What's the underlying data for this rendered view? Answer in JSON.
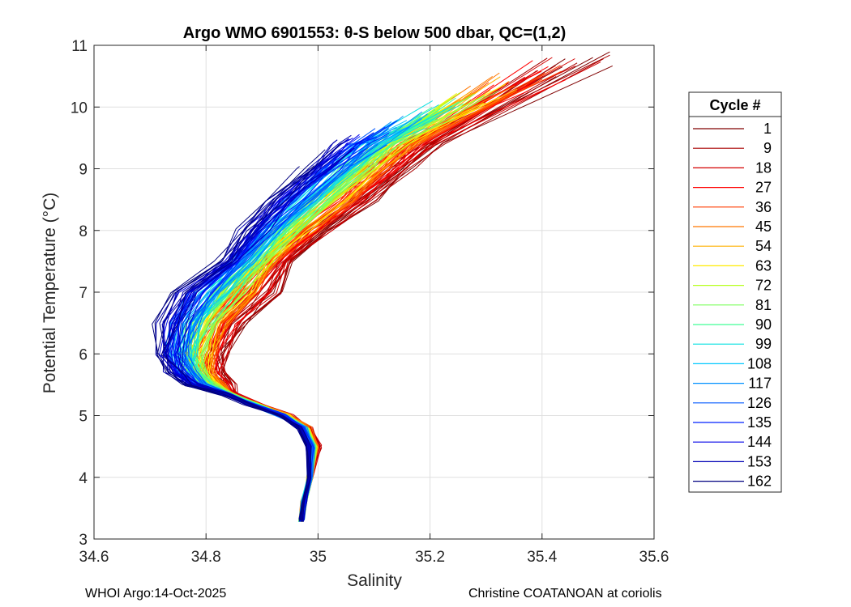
{
  "chart_data": {
    "type": "line",
    "title": "Argo WMO 6901553: θ-S below 500 dbar,  QC=(1,2)",
    "xlabel": "Salinity",
    "ylabel": "Potential Temperature (°C)",
    "xlim": [
      34.6,
      35.6
    ],
    "ylim": [
      3,
      11
    ],
    "xticks": [
      34.6,
      34.8,
      35,
      35.2,
      35.4,
      35.6
    ],
    "xtick_labels": [
      "34.6",
      "34.8",
      "35",
      "35.2",
      "35.4",
      "35.6"
    ],
    "yticks": [
      3,
      4,
      5,
      6,
      7,
      8,
      9,
      10,
      11
    ],
    "ytick_labels": [
      "3",
      "4",
      "5",
      "6",
      "7",
      "8",
      "9",
      "10",
      "11"
    ],
    "grid": true,
    "legend": {
      "title": "Cycle #",
      "placement": "outside-right",
      "entries": [
        {
          "label": "1",
          "color": "#800000"
        },
        {
          "label": "9",
          "color": "#a80000"
        },
        {
          "label": "18",
          "color": "#d40000"
        },
        {
          "label": "27",
          "color": "#ff0000"
        },
        {
          "label": "36",
          "color": "#ff3c00"
        },
        {
          "label": "45",
          "color": "#ff7800"
        },
        {
          "label": "54",
          "color": "#ffb000"
        },
        {
          "label": "63",
          "color": "#ffec00"
        },
        {
          "label": "72",
          "color": "#b8ff20"
        },
        {
          "label": "81",
          "color": "#7cff5c"
        },
        {
          "label": "90",
          "color": "#40ff98"
        },
        {
          "label": "99",
          "color": "#0ce0e0"
        },
        {
          "label": "108",
          "color": "#00c8ff"
        },
        {
          "label": "117",
          "color": "#0090ff"
        },
        {
          "label": "126",
          "color": "#0058ff"
        },
        {
          "label": "135",
          "color": "#0020ff"
        },
        {
          "label": "144",
          "color": "#0000e8"
        },
        {
          "label": "153",
          "color": "#0000b4"
        },
        {
          "label": "162",
          "color": "#000080"
        }
      ]
    },
    "series_profile": [
      [
        3.3,
        34.97
      ],
      [
        3.6,
        34.975
      ],
      [
        4.0,
        34.985
      ],
      [
        4.5,
        34.99
      ],
      [
        4.8,
        34.975
      ],
      [
        5.0,
        34.94
      ],
      [
        5.2,
        34.88
      ],
      [
        5.35,
        34.84
      ],
      [
        5.5,
        34.81
      ],
      [
        5.7,
        34.785
      ],
      [
        6.0,
        34.775
      ],
      [
        6.5,
        34.79
      ],
      [
        7.0,
        34.83
      ],
      [
        7.5,
        34.875
      ],
      [
        8.0,
        34.925
      ],
      [
        8.5,
        34.985
      ],
      [
        9.0,
        35.05
      ],
      [
        9.4,
        35.1
      ]
    ],
    "series_spread_note": "warm red profiles extend to ~10.8 °C near 35.44 salinity; cold blue profiles minimum ~34.71 near 6 °C"
  },
  "footer": {
    "left": "WHOI Argo:14-Oct-2025",
    "right": "Christine COATANOAN at coriolis"
  }
}
